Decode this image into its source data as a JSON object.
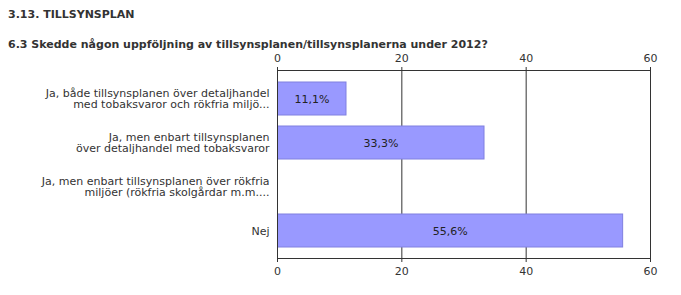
{
  "chart_data": {
    "type": "bar",
    "orientation": "horizontal",
    "title": "3.13. TILLSYNSPLAN",
    "subtitle": "6.3 Skedde någon uppföljning av tillsynsplanen/tillsynsplanerna under 2012?",
    "categories": [
      "Ja, både tillsynsplanen över detaljhandel\nmed tobaksvaror och rökfria miljö...",
      "Ja, men enbart tillsynsplanen\növer detaljhandel med tobaksvaror",
      "Ja, men enbart tillsynsplanen över rökfria\nmiljöer (rökfria skolgårdar m.m....",
      "Nej"
    ],
    "values": [
      11.1,
      33.3,
      0,
      55.6
    ],
    "value_labels": [
      "11,1%",
      "33,3%",
      null,
      "55,6%"
    ],
    "data_labels": true,
    "color": "#9999ff",
    "xlim": [
      0,
      60
    ],
    "xticks": [
      0,
      20,
      40,
      60
    ],
    "grid": true
  }
}
